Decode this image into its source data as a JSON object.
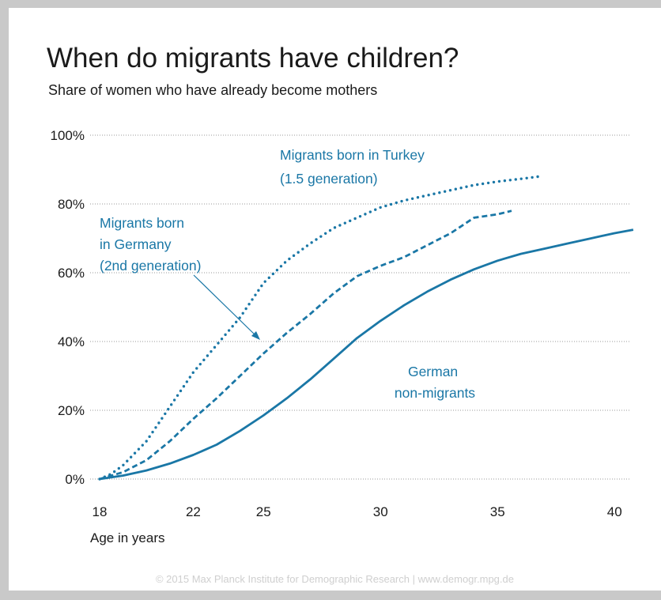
{
  "title": "When do migrants have children?",
  "subtitle": "Share of women who have already become mothers",
  "footer": "© 2015 Max Planck Institute for Demographic Research | www.demogr.mpg.de",
  "chart_data": {
    "type": "line",
    "title": "When do migrants have children?",
    "subtitle": "Share of women who have already become mothers",
    "xlabel": "Age in years",
    "ylabel": "",
    "xlim": [
      18,
      41
    ],
    "ylim": [
      0,
      100
    ],
    "x_ticks": [
      18,
      22,
      25,
      30,
      35,
      40
    ],
    "x_tick_labels": [
      "18",
      "22",
      "25",
      "30",
      "35",
      "40"
    ],
    "y_ticks": [
      0,
      20,
      40,
      60,
      80,
      100
    ],
    "y_tick_labels": [
      "0%",
      "20%",
      "40%",
      "60%",
      "80%",
      "100%"
    ],
    "grid": "horizontal dotted",
    "colors": {
      "line": "#1a77a6",
      "text": "#1a1a1a",
      "annotation": "#1a77a6",
      "grid": "#9a9a9a"
    },
    "series": [
      {
        "name": "German non-migrants",
        "style": "solid",
        "points": [
          [
            18,
            0
          ],
          [
            19,
            1
          ],
          [
            20,
            2.5
          ],
          [
            21,
            4.5
          ],
          [
            22,
            7
          ],
          [
            23,
            10
          ],
          [
            24,
            14
          ],
          [
            25,
            18.5
          ],
          [
            26,
            23.5
          ],
          [
            27,
            29
          ],
          [
            28,
            35
          ],
          [
            29,
            41
          ],
          [
            30,
            46
          ],
          [
            31,
            50.5
          ],
          [
            32,
            54.5
          ],
          [
            33,
            58
          ],
          [
            34,
            61
          ],
          [
            35,
            63.5
          ],
          [
            36,
            65.5
          ],
          [
            37,
            67
          ],
          [
            38,
            68.5
          ],
          [
            39,
            70
          ],
          [
            40,
            71.5
          ],
          [
            40.8,
            72.5
          ]
        ]
      },
      {
        "name": "Migrants born in Germany (2nd generation)",
        "style": "dashed",
        "points": [
          [
            18,
            0
          ],
          [
            19,
            2
          ],
          [
            20,
            5.5
          ],
          [
            21,
            11
          ],
          [
            22,
            17.5
          ],
          [
            23,
            23.5
          ],
          [
            24,
            30
          ],
          [
            25,
            36.5
          ],
          [
            26,
            42.5
          ],
          [
            27,
            48
          ],
          [
            28,
            54
          ],
          [
            29,
            59
          ],
          [
            30,
            62
          ],
          [
            31,
            64.5
          ],
          [
            32,
            68
          ],
          [
            33,
            71.5
          ],
          [
            34,
            76
          ],
          [
            35,
            77
          ],
          [
            35.6,
            78
          ]
        ]
      },
      {
        "name": "Migrants born in Turkey (1.5 generation)",
        "style": "dotted",
        "points": [
          [
            18,
            0
          ],
          [
            18.5,
            1.5
          ],
          [
            19,
            4
          ],
          [
            20,
            11
          ],
          [
            21,
            21
          ],
          [
            22,
            31
          ],
          [
            23,
            39
          ],
          [
            24,
            47
          ],
          [
            25,
            57
          ],
          [
            26,
            63.5
          ],
          [
            27,
            68.5
          ],
          [
            28,
            73
          ],
          [
            29,
            76
          ],
          [
            30,
            79
          ],
          [
            31,
            81
          ],
          [
            32,
            82.5
          ],
          [
            33,
            84
          ],
          [
            34,
            85.5
          ],
          [
            35,
            86.5
          ],
          [
            36,
            87.3
          ],
          [
            36.8,
            88
          ]
        ]
      }
    ],
    "annotations": [
      {
        "lines": [
          "Migrants born in Turkey",
          "(1.5 generation)"
        ]
      },
      {
        "lines": [
          "Migrants born",
          "in Germany",
          "(2nd generation)"
        ]
      },
      {
        "lines": [
          "German",
          "non-migrants"
        ]
      }
    ]
  }
}
